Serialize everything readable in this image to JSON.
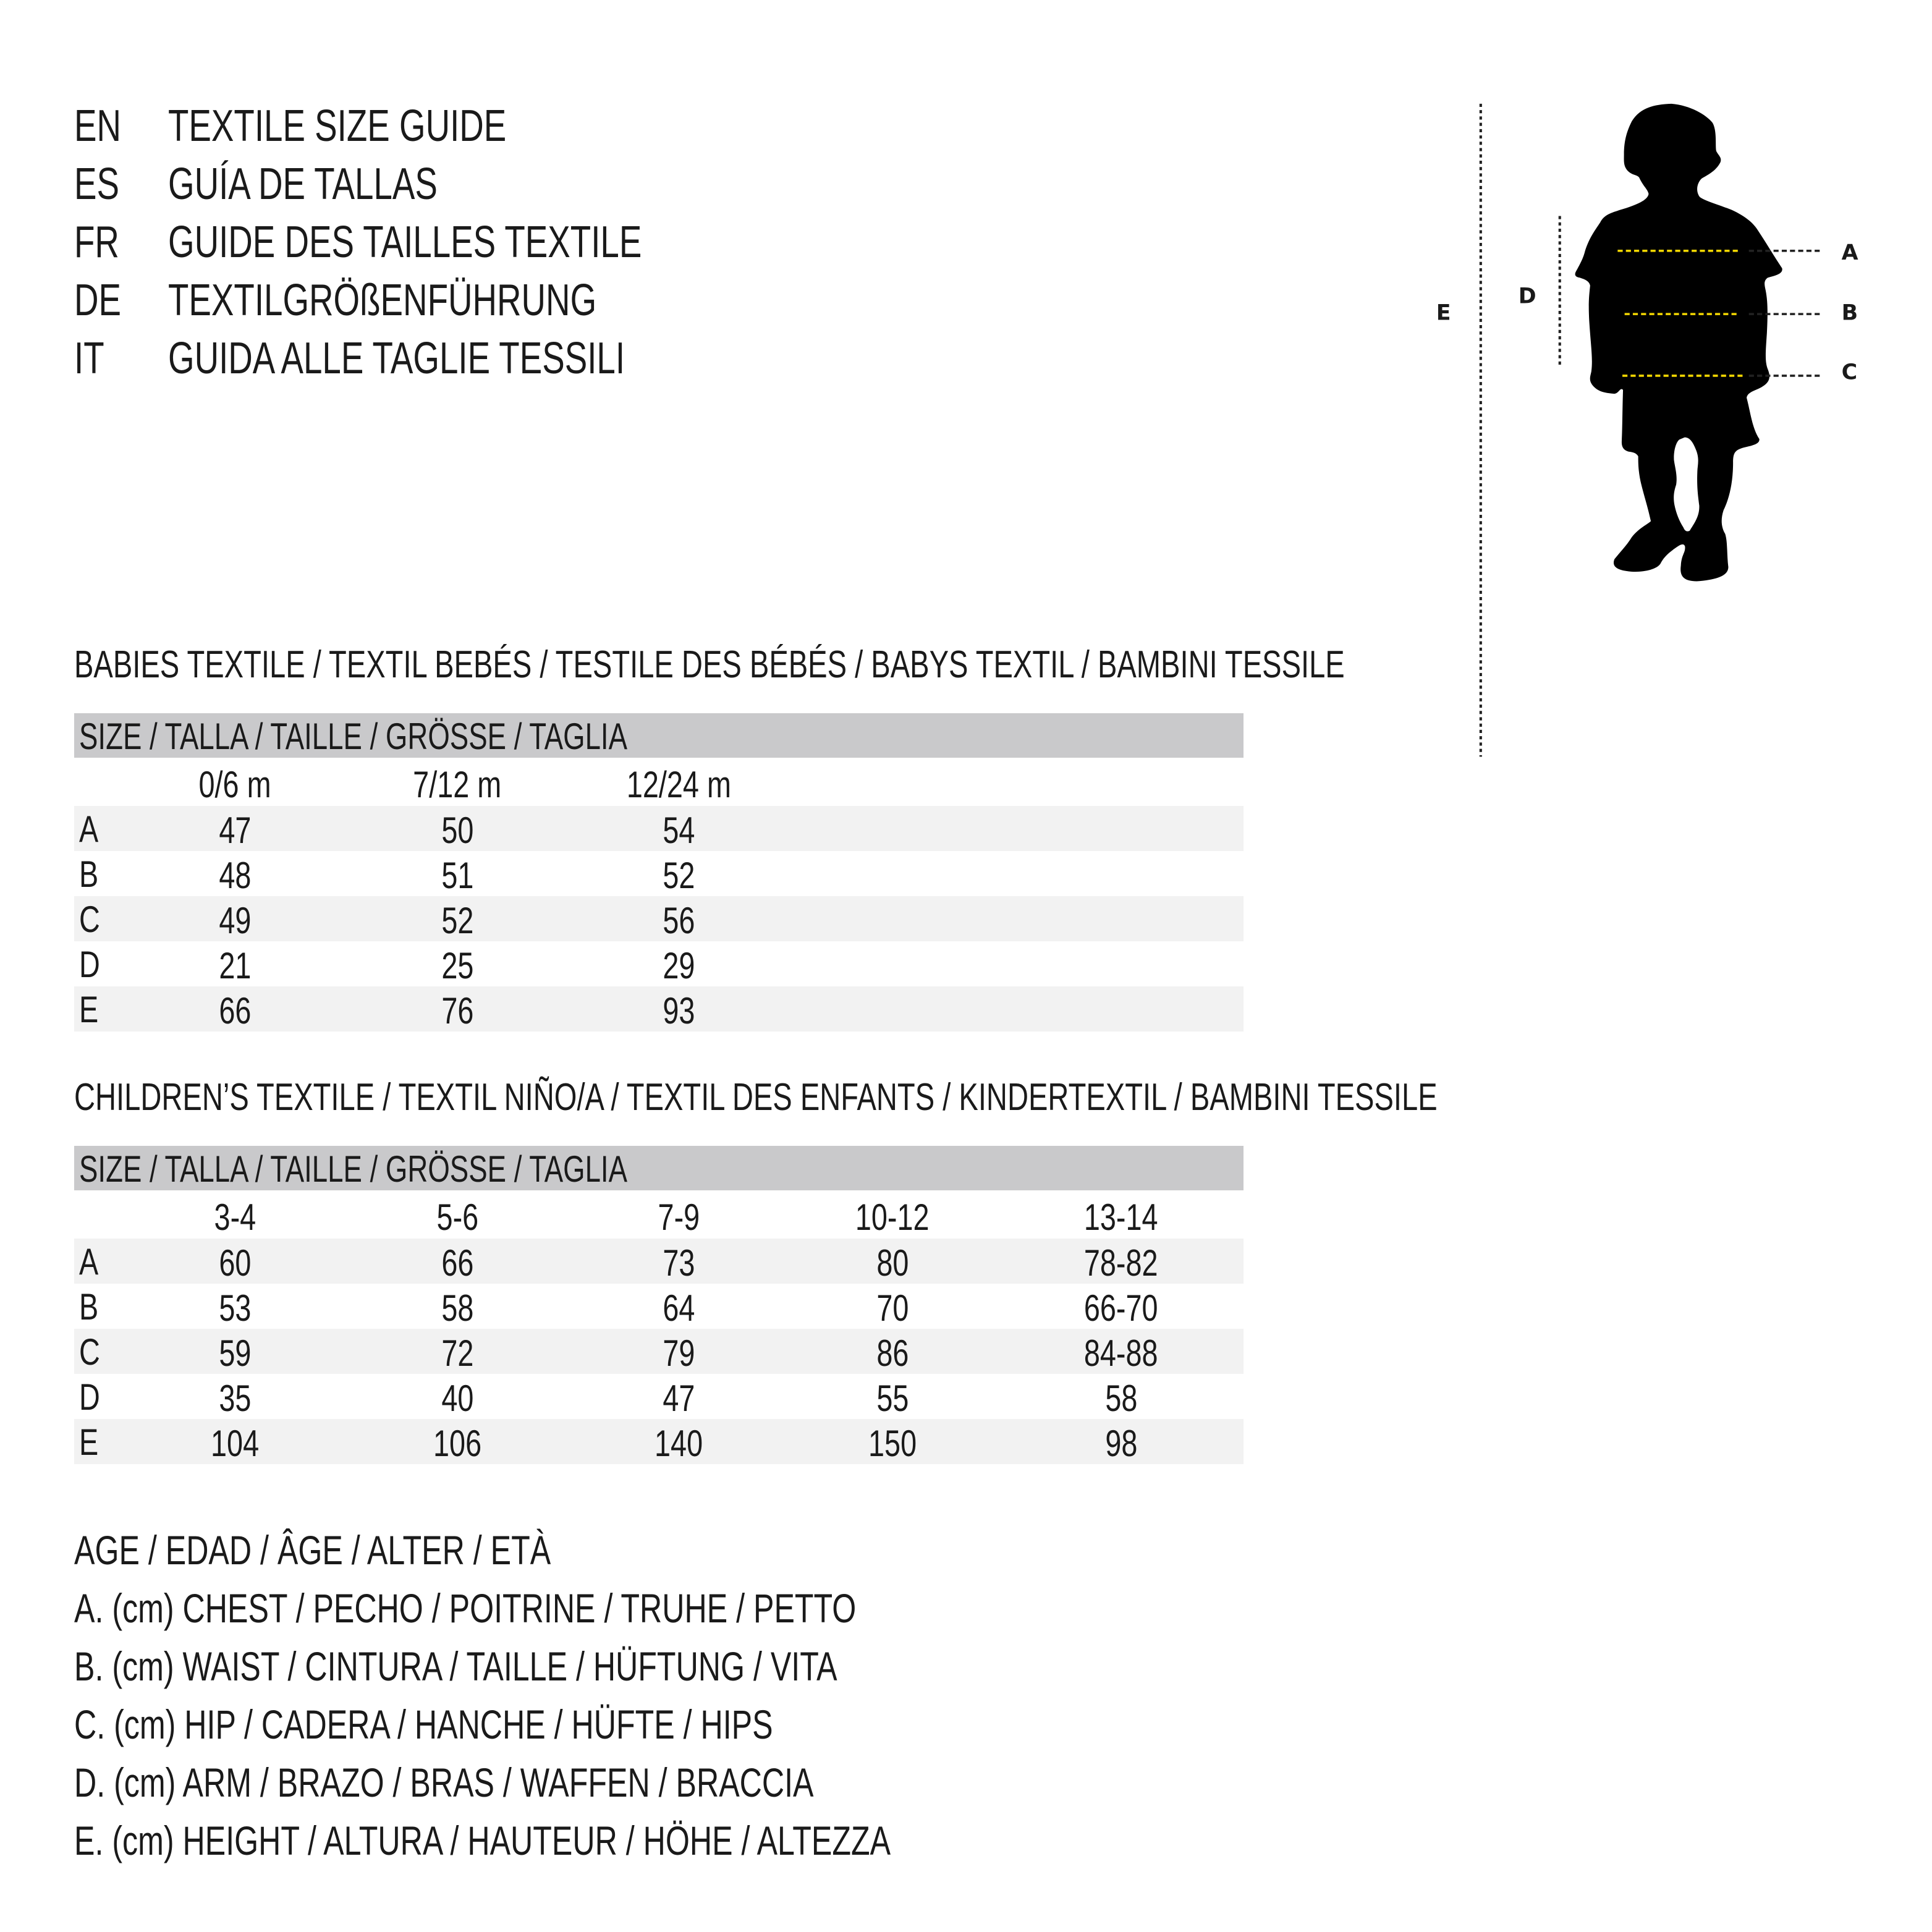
{
  "header": {
    "lines": [
      {
        "code": "EN",
        "text": "TEXTILE SIZE GUIDE"
      },
      {
        "code": "ES",
        "text": "GUÍA DE TALLAS"
      },
      {
        "code": "FR",
        "text": "GUIDE DES TAILLES TEXTILE"
      },
      {
        "code": "DE",
        "text": "TEXTILGRÖßENFÜHRUNG"
      },
      {
        "code": "IT",
        "text": "GUIDA ALLE TAGLIE TESSILI"
      }
    ]
  },
  "diagram": {
    "labels": {
      "A": "A",
      "B": "B",
      "C": "C",
      "D": "D",
      "E": "E"
    },
    "colors": {
      "measure_line": "#f2d600",
      "silhouette": "#000000",
      "guide": "#222222"
    }
  },
  "babies": {
    "title": "BABIES TEXTILE / TEXTIL BEBÉS / TESTILE DES BÉBÉS / BABYS TEXTIL / BAMBINI TESSILE",
    "size_header": "SIZE / TALLA / TAILLE / GRÖSSE / TAGLIA",
    "columns": [
      "0/6 m",
      "7/12 m",
      "12/24 m"
    ],
    "rows": [
      {
        "label": "A",
        "values": [
          "47",
          "50",
          "54"
        ]
      },
      {
        "label": "B",
        "values": [
          "48",
          "51",
          "52"
        ]
      },
      {
        "label": "C",
        "values": [
          "49",
          "52",
          "56"
        ]
      },
      {
        "label": "D",
        "values": [
          "21",
          "25",
          "29"
        ]
      },
      {
        "label": "E",
        "values": [
          "66",
          "76",
          "93"
        ]
      }
    ]
  },
  "children": {
    "title": "CHILDREN’S TEXTILE / TEXTIL NIÑO/A / TEXTIL DES ENFANTS / KINDERTEXTIL / BAMBINI TESSILE",
    "size_header": "SIZE / TALLA / TAILLE / GRÖSSE / TAGLIA",
    "columns": [
      "3-4",
      "5-6",
      "7-9",
      "10-12",
      "13-14"
    ],
    "rows": [
      {
        "label": "A",
        "values": [
          "60",
          "66",
          "73",
          "80",
          "78-82"
        ]
      },
      {
        "label": "B",
        "values": [
          "53",
          "58",
          "64",
          "70",
          "66-70"
        ]
      },
      {
        "label": "C",
        "values": [
          "59",
          "72",
          "79",
          "86",
          "84-88"
        ]
      },
      {
        "label": "D",
        "values": [
          "35",
          "40",
          "47",
          "55",
          "58"
        ]
      },
      {
        "label": "E",
        "values": [
          "104",
          "106",
          "140",
          "150",
          "98"
        ]
      }
    ]
  },
  "legend": [
    "AGE / EDAD / ÂGE / ALTER / ETÀ",
    "A. (cm) CHEST / PECHO / POITRINE / TRUHE / PETTO",
    "B. (cm) WAIST / CINTURA / TAILLE / HÜFTUNG / VITA",
    "C. (cm) HIP / CADERA / HANCHE / HÜFTE / HIPS",
    "D. (cm) ARM / BRAZO / BRAS / WAFFEN / BRACCIA",
    "E. (cm) HEIGHT / ALTURA / HAUTEUR / HÖHE / ALTEZZA"
  ]
}
